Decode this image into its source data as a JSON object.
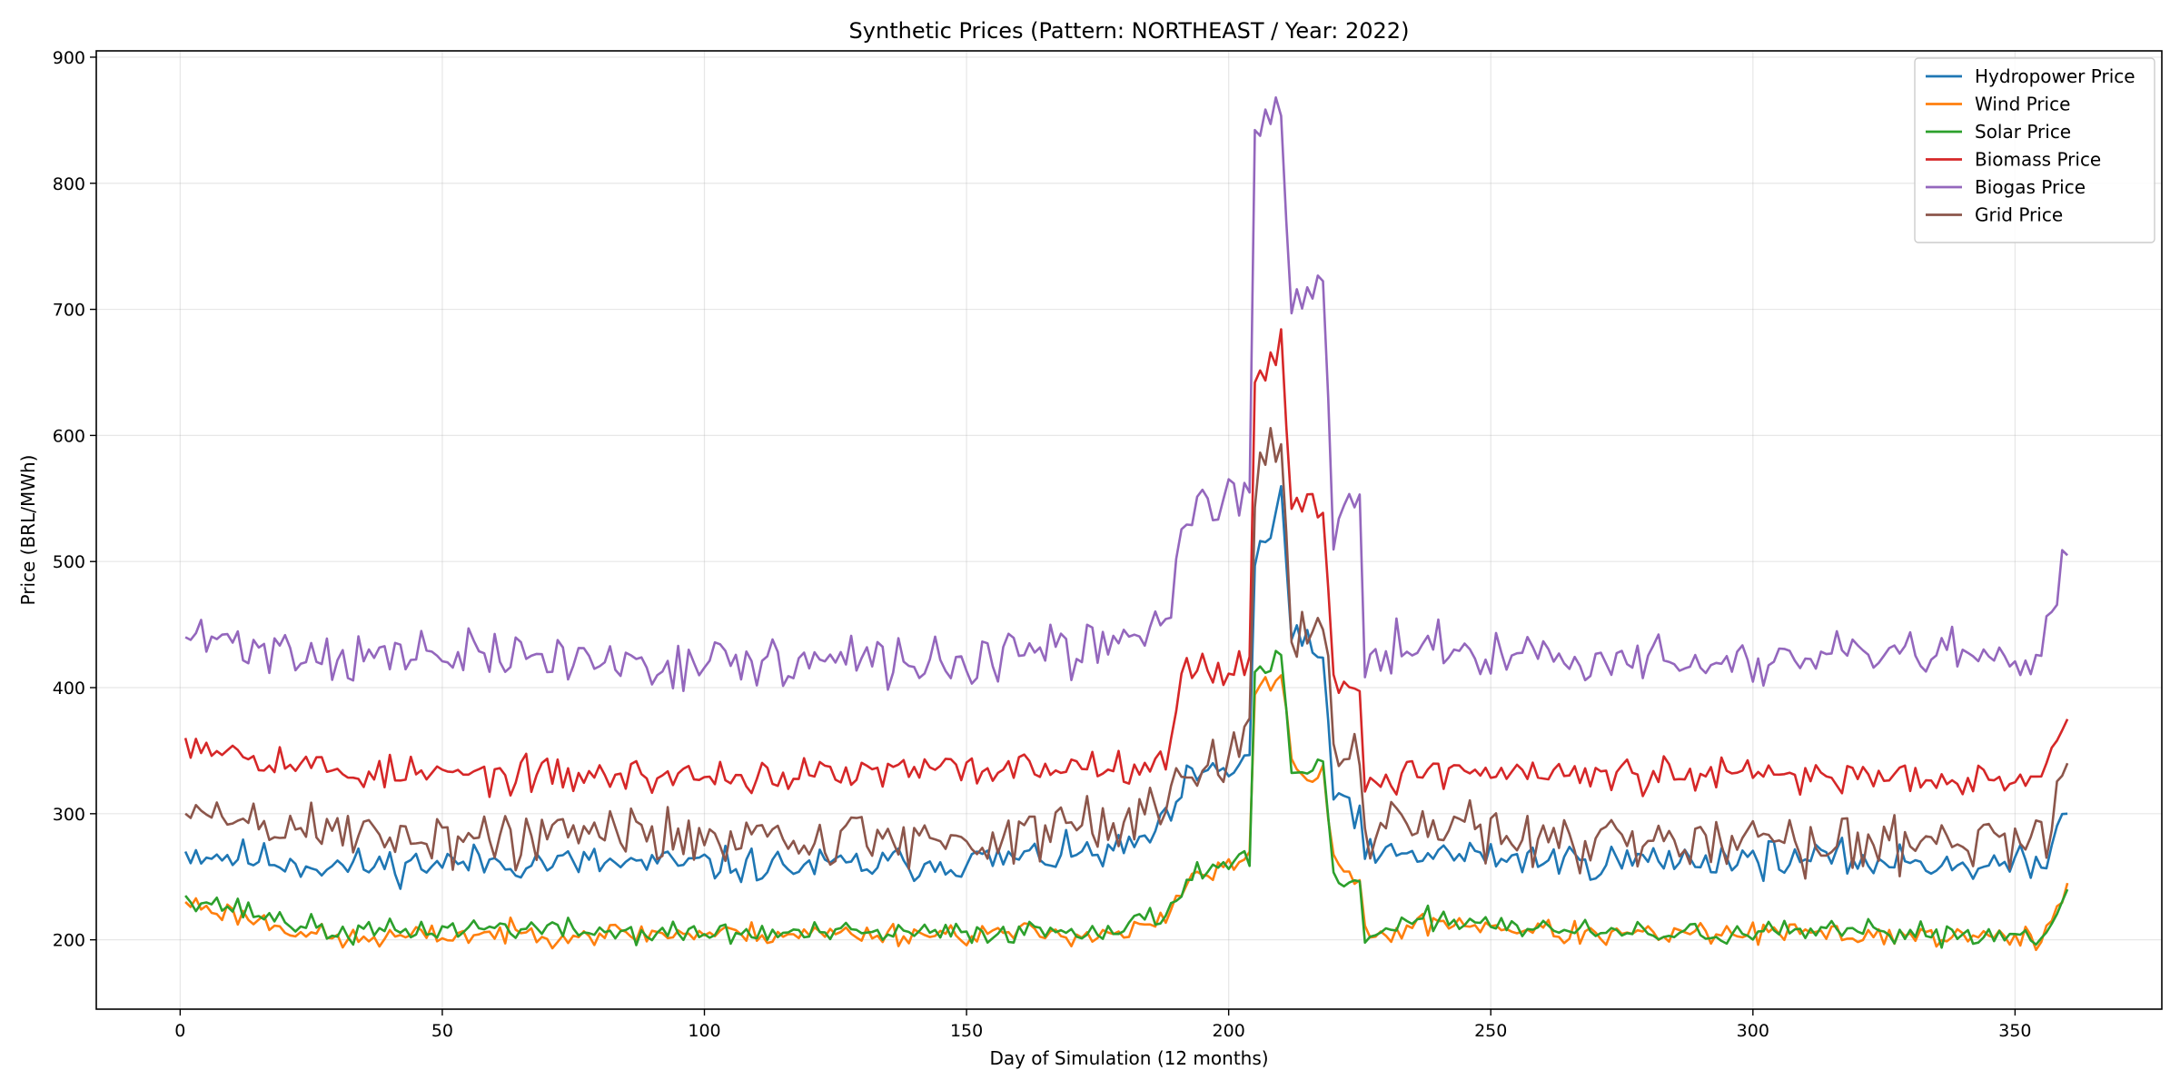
{
  "chart_data": {
    "type": "line",
    "title": "Synthetic Prices (Pattern: NORTHEAST / Year: 2022)",
    "xlabel": "Day of Simulation (12 months)",
    "ylabel": "Price (BRL/MWh)",
    "xlim": [
      -16,
      378
    ],
    "ylim": [
      145,
      905
    ],
    "xticks": [
      0,
      50,
      100,
      150,
      200,
      250,
      300,
      350
    ],
    "yticks": [
      200,
      300,
      400,
      500,
      600,
      700,
      800,
      900
    ],
    "grid": true,
    "legend_position": "top-right",
    "anchor_x": [
      1,
      30,
      60,
      90,
      120,
      150,
      180,
      188,
      192,
      200,
      204,
      205,
      208,
      210,
      212,
      215,
      218,
      220,
      225,
      226,
      240,
      270,
      300,
      330,
      355,
      360
    ],
    "series": [
      {
        "name": "Hydropower Price",
        "color": "#1f77b4",
        "noise": 14,
        "seed": 11,
        "values": [
          270,
          258,
          262,
          260,
          258,
          262,
          270,
          290,
          325,
          335,
          345,
          500,
          520,
          560,
          440,
          430,
          420,
          320,
          300,
          265,
          268,
          262,
          265,
          262,
          258,
          300
        ]
      },
      {
        "name": "Wind Price",
        "color": "#ff7f0e",
        "noise": 9,
        "seed": 23,
        "values": [
          230,
          200,
          205,
          205,
          205,
          205,
          205,
          215,
          245,
          258,
          262,
          400,
          405,
          415,
          340,
          330,
          330,
          260,
          250,
          200,
          215,
          203,
          205,
          204,
          200,
          245
        ]
      },
      {
        "name": "Solar Price",
        "color": "#2ca02c",
        "noise": 9,
        "seed": 37,
        "values": [
          235,
          205,
          210,
          205,
          205,
          205,
          210,
          220,
          250,
          262,
          265,
          410,
          410,
          425,
          335,
          330,
          335,
          250,
          245,
          200,
          218,
          205,
          205,
          206,
          203,
          240
        ]
      },
      {
        "name": "Biomass Price",
        "color": "#d62728",
        "noise": 14,
        "seed": 53,
        "values": [
          360,
          333,
          330,
          330,
          330,
          335,
          340,
          345,
          415,
          415,
          420,
          650,
          660,
          670,
          545,
          555,
          530,
          410,
          400,
          325,
          335,
          330,
          330,
          330,
          330,
          375
        ]
      },
      {
        "name": "Biogas Price",
        "color": "#9467bd",
        "noise": 20,
        "seed": 71,
        "values": [
          440,
          425,
          425,
          420,
          420,
          420,
          435,
          455,
          540,
          550,
          555,
          845,
          860,
          850,
          705,
          705,
          710,
          535,
          540,
          420,
          435,
          420,
          420,
          425,
          420,
          505
        ]
      },
      {
        "name": "Grid Price",
        "color": "#8c564b",
        "noise": 24,
        "seed": 89,
        "values": [
          300,
          285,
          280,
          285,
          280,
          280,
          290,
          310,
          345,
          350,
          360,
          560,
          575,
          585,
          450,
          450,
          455,
          345,
          350,
          280,
          290,
          275,
          280,
          280,
          280,
          340
        ]
      }
    ]
  }
}
